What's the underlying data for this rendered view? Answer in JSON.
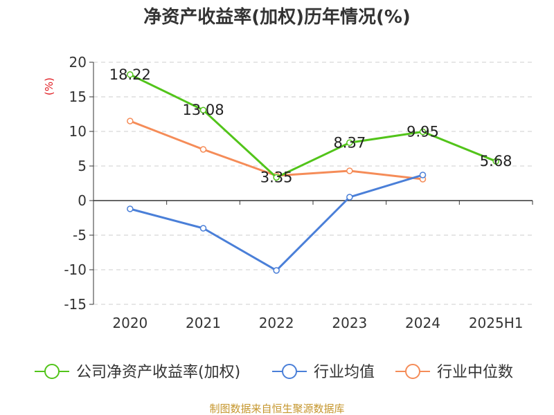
{
  "chart_data": {
    "type": "line",
    "title": "净资产收益率(加权)历年情况(%)",
    "ylabel": "(%)",
    "xlabel": "",
    "categories": [
      "2020",
      "2021",
      "2022",
      "2023",
      "2024",
      "2025H1"
    ],
    "ylim": [
      -15,
      20
    ],
    "yticks": [
      -15,
      -10,
      -5,
      0,
      5,
      10,
      15,
      20
    ],
    "grid": true,
    "legend_position": "bottom",
    "series": [
      {
        "name": "公司净资产收益率(加权)",
        "color": "#52c41a",
        "values": [
          18.22,
          13.08,
          3.35,
          8.37,
          9.95,
          5.68
        ],
        "labels": [
          "18.22",
          "13.08",
          "3.35",
          "8.37",
          "9.95",
          "5.68"
        ]
      },
      {
        "name": "行业均值",
        "color": "#4a7fd8",
        "values": [
          -1.2,
          -4.0,
          -10.1,
          0.5,
          3.7,
          null
        ]
      },
      {
        "name": "行业中位数",
        "color": "#f58c58",
        "values": [
          11.5,
          7.4,
          3.6,
          4.3,
          3.1,
          null
        ]
      }
    ]
  },
  "colors": {
    "title": "#333333",
    "axis": "#333333",
    "grid": "#cccccc",
    "ylabel": "#e0191f",
    "footer": "#c5962d"
  },
  "footer": "制图数据来自恒生聚源数据库"
}
